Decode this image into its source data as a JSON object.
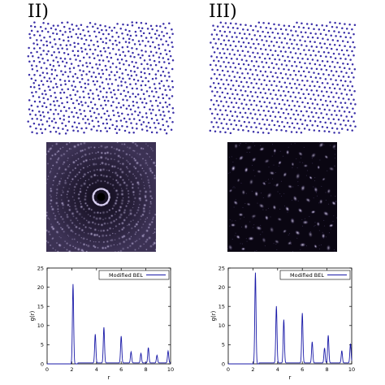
{
  "panels": [
    {
      "id": "II",
      "label": "II)",
      "structure": "quasicrystalline",
      "diffraction": "rings",
      "point_color": "#3a2fa8",
      "chart_data": {
        "type": "line",
        "xlabel": "r",
        "ylabel": "g(r)",
        "xlim": [
          0,
          10
        ],
        "ylim": [
          0,
          25
        ],
        "x_ticks": [
          0,
          2,
          4,
          6,
          8,
          10
        ],
        "y_ticks": [
          0,
          5,
          10,
          15,
          20,
          25
        ],
        "grid": false,
        "legend": "top-right",
        "series": [
          {
            "name": "Modified BEL",
            "color": "#1a1aa8",
            "peaks": [
              {
                "r": 2.1,
                "g": 20.8
              },
              {
                "r": 3.9,
                "g": 7.5
              },
              {
                "r": 4.6,
                "g": 9.3
              },
              {
                "r": 6.0,
                "g": 7.0
              },
              {
                "r": 6.8,
                "g": 2.9
              },
              {
                "r": 7.6,
                "g": 2.5
              },
              {
                "r": 8.2,
                "g": 4.0
              },
              {
                "r": 8.9,
                "g": 2.0
              },
              {
                "r": 9.8,
                "g": 3.1
              }
            ]
          }
        ]
      }
    },
    {
      "id": "III",
      "label": "III)",
      "structure": "hexagonal",
      "diffraction": "spots",
      "point_color": "#3a2fa8",
      "chart_data": {
        "type": "line",
        "xlabel": "r",
        "ylabel": "g(r)",
        "xlim": [
          0,
          10
        ],
        "ylim": [
          0,
          25
        ],
        "x_ticks": [
          0,
          2,
          4,
          6,
          8,
          10
        ],
        "y_ticks": [
          0,
          5,
          10,
          15,
          20,
          25
        ],
        "grid": false,
        "legend": "top-right",
        "series": [
          {
            "name": "Modified BEL",
            "color": "#1a1aa8",
            "peaks": [
              {
                "r": 2.2,
                "g": 23.8
              },
              {
                "r": 3.9,
                "g": 14.8
              },
              {
                "r": 4.5,
                "g": 11.3
              },
              {
                "r": 6.0,
                "g": 13.0
              },
              {
                "r": 6.8,
                "g": 5.5
              },
              {
                "r": 7.8,
                "g": 3.9
              },
              {
                "r": 8.1,
                "g": 7.2
              },
              {
                "r": 9.2,
                "g": 3.2
              },
              {
                "r": 9.9,
                "g": 5.0
              }
            ]
          }
        ]
      }
    }
  ]
}
